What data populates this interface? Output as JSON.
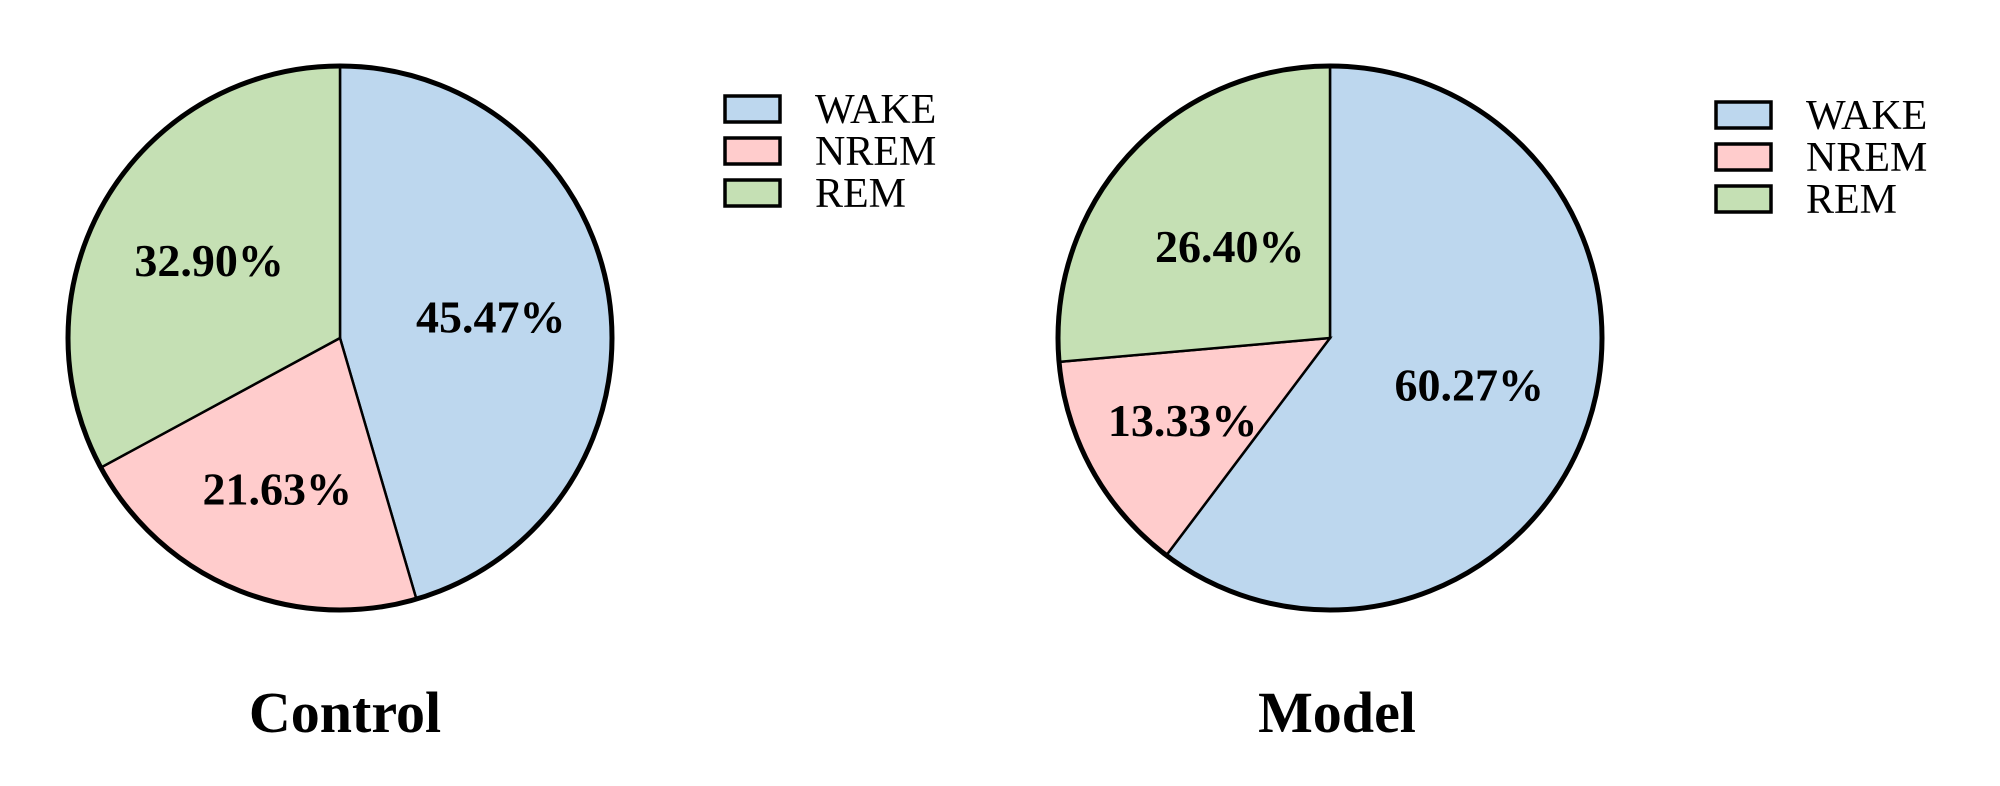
{
  "chart_data": [
    {
      "type": "pie",
      "title": "Control",
      "categories": [
        "WAKE",
        "NREM",
        "REM"
      ],
      "values": [
        45.47,
        21.63,
        32.9
      ],
      "labels": [
        "45.47%",
        "21.63%",
        "32.90%"
      ],
      "colors": [
        "#BDD7EE",
        "#FFCCCC",
        "#C5E0B4"
      ],
      "legend": "right"
    },
    {
      "type": "pie",
      "title": "Model",
      "categories": [
        "WAKE",
        "NREM",
        "REM"
      ],
      "values": [
        60.27,
        13.33,
        26.4
      ],
      "labels": [
        "60.27%",
        "13.33%",
        "26.40%"
      ],
      "colors": [
        "#BDD7EE",
        "#FFCCCC",
        "#C5E0B4"
      ],
      "legend": "right"
    }
  ]
}
